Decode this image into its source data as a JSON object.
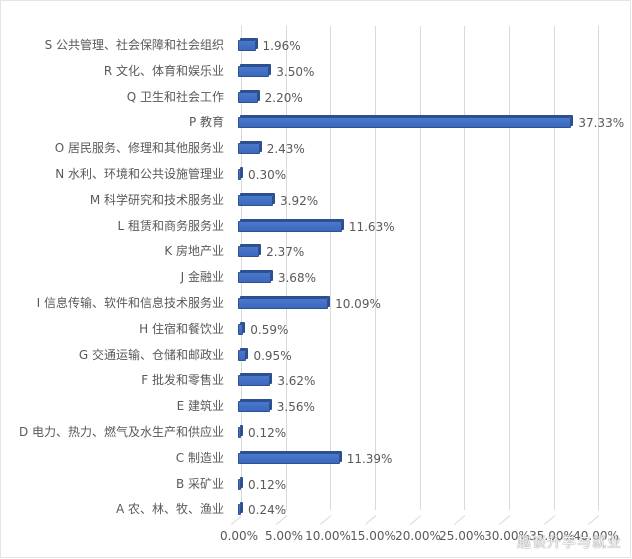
{
  "chart_data": {
    "type": "bar",
    "orientation": "horizontal",
    "title": "",
    "xlabel": "",
    "ylabel": "",
    "xlim": [
      0,
      40
    ],
    "x_ticks": [
      "0.00%",
      "5.00%",
      "10.00%",
      "15.00%",
      "20.00%",
      "25.00%",
      "30.00%",
      "35.00%",
      "40.00%"
    ],
    "grid": true,
    "legend": null,
    "bar_color": "#4472C4",
    "categories": [
      "S 公共管理、社会保障和社会组织",
      "R 文化、体育和娱乐业",
      "Q 卫生和社会工作",
      "P 教育",
      "O 居民服务、修理和其他服务业",
      "N 水利、环境和公共设施管理业",
      "M 科学研究和技术服务业",
      "L 租赁和商务服务业",
      "K 房地产业",
      "J 金融业",
      "I 信息传输、软件和信息技术服务业",
      "H 住宿和餐饮业",
      "G 交通运输、仓储和邮政业",
      "F 批发和零售业",
      "E 建筑业",
      "D 电力、热力、燃气及水生产和供应业",
      "C 制造业",
      "B 采矿业",
      "A 农、林、牧、渔业"
    ],
    "values": [
      1.96,
      3.5,
      2.2,
      37.33,
      2.43,
      0.3,
      3.92,
      11.63,
      2.37,
      3.68,
      10.09,
      0.59,
      0.95,
      3.62,
      3.56,
      0.12,
      11.39,
      0.12,
      0.24
    ],
    "value_labels": [
      "1.96%",
      "3.50%",
      "2.20%",
      "37.33%",
      "2.43%",
      "0.30%",
      "3.92%",
      "11.63%",
      "2.37%",
      "3.68%",
      "10.09%",
      "0.59%",
      "0.95%",
      "3.62%",
      "3.56%",
      "0.12%",
      "11.39%",
      "0.12%",
      "0.24%"
    ]
  },
  "watermark": "趣谈升学与就业"
}
